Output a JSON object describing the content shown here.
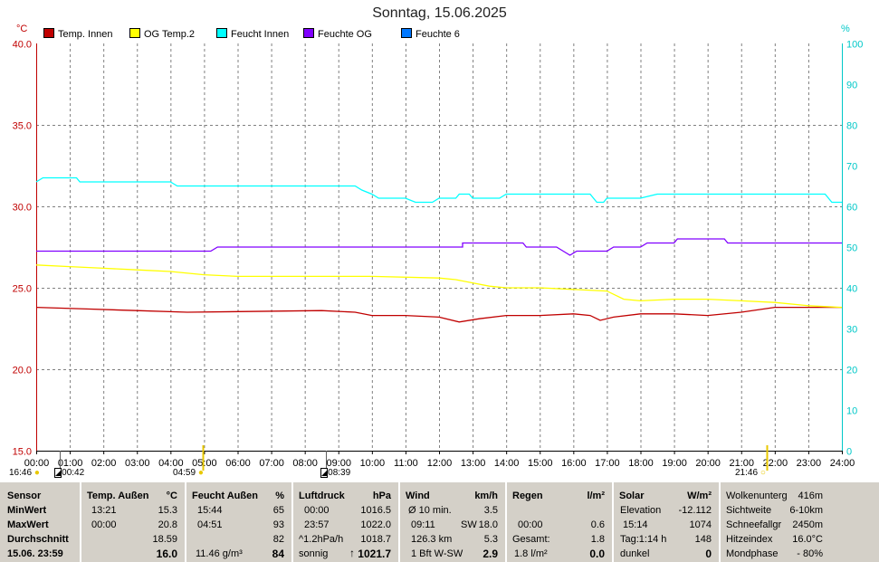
{
  "title": "Sonntag, 15.06.2025",
  "unit_left": "°C",
  "unit_right": "%",
  "chart_data": {
    "type": "line",
    "x_range": [
      "00:00",
      "24:00"
    ],
    "x_ticks": [
      "00:00",
      "01:00",
      "02:00",
      "03:00",
      "04:00",
      "05:00",
      "06:00",
      "07:00",
      "08:00",
      "09:00",
      "10:00",
      "11:00",
      "12:00",
      "13:00",
      "14:00",
      "15:00",
      "16:00",
      "17:00",
      "18:00",
      "19:00",
      "20:00",
      "21:00",
      "22:00",
      "23:00",
      "24:00"
    ],
    "y_left": {
      "min": 15.0,
      "max": 40.0,
      "ticks": [
        "15.0",
        "20.0",
        "25.0",
        "30.0",
        "35.0",
        "40.0"
      ]
    },
    "y_right": {
      "min": 0,
      "max": 100,
      "ticks": [
        "0",
        "10",
        "20",
        "30",
        "40",
        "50",
        "60",
        "70",
        "80",
        "90",
        "100"
      ]
    },
    "grid": true,
    "legend_placement": "top-left",
    "series": [
      {
        "name": "Temp. Innen",
        "axis": "left",
        "color": "#c00000",
        "points": [
          [
            0,
            23.8
          ],
          [
            1.5,
            23.7
          ],
          [
            3,
            23.6
          ],
          [
            4.5,
            23.5
          ],
          [
            8.5,
            23.6
          ],
          [
            9.5,
            23.5
          ],
          [
            10,
            23.3
          ],
          [
            11,
            23.3
          ],
          [
            12,
            23.2
          ],
          [
            12.6,
            22.9
          ],
          [
            13.2,
            23.1
          ],
          [
            14,
            23.3
          ],
          [
            15,
            23.3
          ],
          [
            16,
            23.4
          ],
          [
            16.5,
            23.3
          ],
          [
            16.8,
            23.0
          ],
          [
            17.2,
            23.2
          ],
          [
            18,
            23.4
          ],
          [
            19,
            23.4
          ],
          [
            20,
            23.3
          ],
          [
            21,
            23.5
          ],
          [
            22,
            23.8
          ],
          [
            23,
            23.8
          ],
          [
            24,
            23.8
          ]
        ]
      },
      {
        "name": "OG Temp.2",
        "axis": "left",
        "color": "#ffff00",
        "points": [
          [
            0,
            26.4
          ],
          [
            1,
            26.3
          ],
          [
            2,
            26.2
          ],
          [
            3,
            26.1
          ],
          [
            4,
            26.0
          ],
          [
            5,
            25.8
          ],
          [
            6,
            25.7
          ],
          [
            8,
            25.7
          ],
          [
            10,
            25.7
          ],
          [
            12,
            25.6
          ],
          [
            12.5,
            25.5
          ],
          [
            13,
            25.3
          ],
          [
            13.5,
            25.1
          ],
          [
            14,
            25.0
          ],
          [
            15,
            25.0
          ],
          [
            16,
            24.9
          ],
          [
            17,
            24.8
          ],
          [
            17.5,
            24.3
          ],
          [
            18,
            24.2
          ],
          [
            19,
            24.3
          ],
          [
            20,
            24.3
          ],
          [
            21,
            24.2
          ],
          [
            22,
            24.1
          ],
          [
            23,
            23.9
          ],
          [
            24,
            23.8
          ]
        ]
      },
      {
        "name": "Feucht Innen",
        "axis": "right",
        "color": "#00ffff",
        "points": [
          [
            0,
            66
          ],
          [
            0.2,
            67
          ],
          [
            1.2,
            67
          ],
          [
            1.3,
            66
          ],
          [
            4,
            66
          ],
          [
            4.2,
            65
          ],
          [
            9.5,
            65
          ],
          [
            9.7,
            64
          ],
          [
            10,
            63
          ],
          [
            10.2,
            62
          ],
          [
            11,
            62
          ],
          [
            11.3,
            61
          ],
          [
            11.8,
            61
          ],
          [
            12,
            62
          ],
          [
            12.5,
            62
          ],
          [
            12.6,
            63
          ],
          [
            12.9,
            63
          ],
          [
            13,
            62
          ],
          [
            13.8,
            62
          ],
          [
            14,
            63
          ],
          [
            16.5,
            63
          ],
          [
            16.7,
            61
          ],
          [
            16.9,
            61
          ],
          [
            17,
            62
          ],
          [
            18,
            62
          ],
          [
            18.5,
            63
          ],
          [
            20,
            63
          ],
          [
            22,
            63
          ],
          [
            23.5,
            63
          ],
          [
            23.7,
            61
          ],
          [
            24,
            61
          ]
        ]
      },
      {
        "name": "Feuchte OG",
        "axis": "right",
        "color": "#8000ff",
        "points": [
          [
            0,
            49
          ],
          [
            5.2,
            49
          ],
          [
            5.4,
            50
          ],
          [
            12.7,
            50
          ],
          [
            12.7,
            51
          ],
          [
            14.5,
            51
          ],
          [
            14.6,
            50
          ],
          [
            15.5,
            50
          ],
          [
            15.7,
            49
          ],
          [
            15.9,
            48
          ],
          [
            16.1,
            49
          ],
          [
            17,
            49
          ],
          [
            17.2,
            50
          ],
          [
            18,
            50
          ],
          [
            18.2,
            51
          ],
          [
            19,
            51
          ],
          [
            19.1,
            52
          ],
          [
            19.8,
            52
          ],
          [
            20.5,
            52
          ],
          [
            20.6,
            51
          ],
          [
            21,
            51
          ],
          [
            22,
            51
          ],
          [
            24,
            51
          ]
        ]
      },
      {
        "name": "Feuchte 6",
        "axis": "right",
        "color": "#0078ff",
        "points": []
      }
    ]
  },
  "time_markers": {
    "left_sun": "16:46",
    "moon_a": "00:42",
    "sunrise": "04:59",
    "moon_b": "08:39",
    "sunset": "21:46"
  },
  "footer": {
    "sensor": {
      "h": "Sensor",
      "min": "MinWert",
      "max": "MaxWert",
      "avg": "Durchschnitt",
      "now": "15.06.  23:59"
    },
    "temp": {
      "h": "Temp. Außen",
      "u": "°C",
      "min_t": "13:21",
      "min_v": "15.3",
      "max_t": "00:00",
      "max_v": "20.8",
      "avg": "18.59",
      "now": "16.0"
    },
    "hum": {
      "h": "Feucht Außen",
      "u": "%",
      "min_t": "15:44",
      "min_v": "65",
      "max_t": "04:51",
      "max_v": "93",
      "avg": "82",
      "abs": "11.46 g/m³",
      "now": "84"
    },
    "press": {
      "h": "Luftdruck",
      "u": "hPa",
      "min_t": "00:00",
      "min_v": "1016.5",
      "max_t": "23:57",
      "max_v": "1022.0",
      "trend_l": "^1.2hPa/h",
      "trend_v": "1018.7",
      "weather": "sonnig",
      "now": "1021.7"
    },
    "wind": {
      "h": "Wind",
      "u": "km/h",
      "r1l": "Ø 10 min.",
      "r1v": "3.5",
      "r2l": "09:11",
      "r2m": "SW",
      "r2v": "18.0",
      "r3l": "126.3 km",
      "r3v": "5.3",
      "r4l": "1 Bft W-SW",
      "r4v": "2.9"
    },
    "rain": {
      "h": "Regen",
      "u": "l/m²",
      "r2l": "00:00",
      "r2v": "0.6",
      "r3l": "Gesamt:",
      "r3v": "1.8",
      "r4l": "1.8 l/m²",
      "r4v": "0.0"
    },
    "solar": {
      "h": "Solar",
      "u": "W/m²",
      "r1l": "Elevation",
      "r1v": "-12.112",
      "r2l": "15:14",
      "r2v": "1074",
      "r3l": "Tag:1:14 h",
      "r3v": "148",
      "r4l": "dunkel",
      "r4v": "0"
    },
    "extra": {
      "r0l": "Wolkenunterg",
      "r0v": "416m",
      "r1l": "Sichtweite",
      "r1v": "6-10km",
      "r2l": "Schneefallgr",
      "r2v": "2450m",
      "r3l": "Hitzeindex",
      "r3v": "16.0°C",
      "r4l": "Mondphase",
      "r4v": "- 80%"
    }
  }
}
